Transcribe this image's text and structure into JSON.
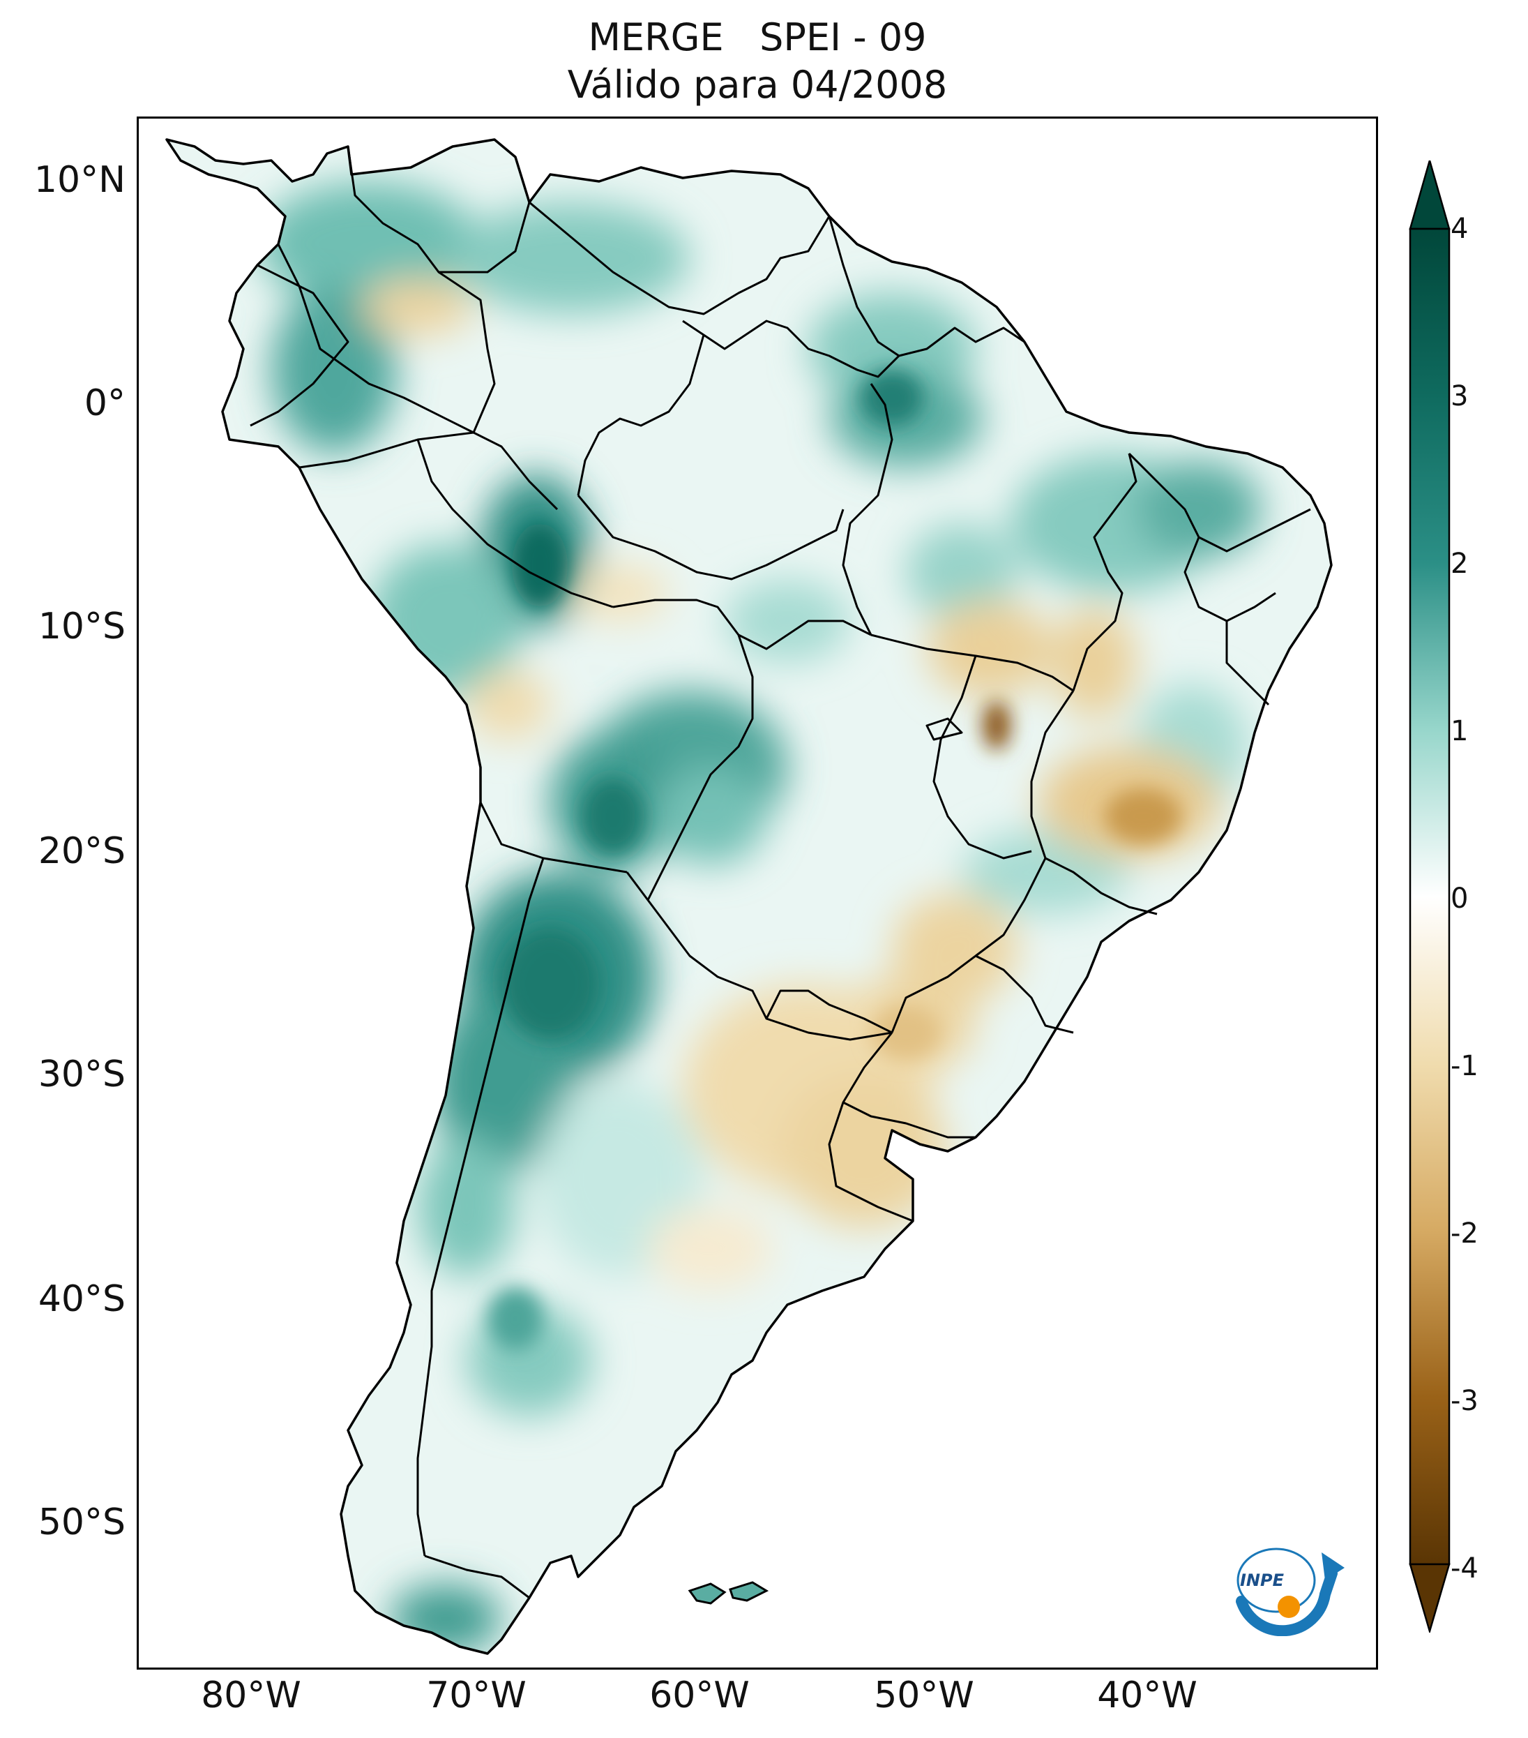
{
  "title": {
    "line1": "MERGE   SPEI - 09",
    "line2": "Válido para 04/2008"
  },
  "axes": {
    "lat_labels": [
      "10°N",
      "0°",
      "10°S",
      "20°S",
      "30°S",
      "40°S",
      "50°S"
    ],
    "lon_labels": [
      "80°W",
      "70°W",
      "60°W",
      "50°W",
      "40°W"
    ]
  },
  "colorbar": {
    "ticks": [
      "4",
      "3",
      "2",
      "1",
      "0",
      "-1",
      "-2",
      "-3",
      "-4"
    ],
    "colors": {
      "strong_wet": "#01473a",
      "wet": "#2b8f86",
      "light_wet": "#97d6cb",
      "neutral": "#ffffff",
      "light_dry": "#f0dcae",
      "dry": "#c59545",
      "strong_dry": "#5a3504"
    }
  },
  "logo": {
    "text": "INPE"
  },
  "icons": {
    "logo": "inpe-logo-icon"
  }
}
